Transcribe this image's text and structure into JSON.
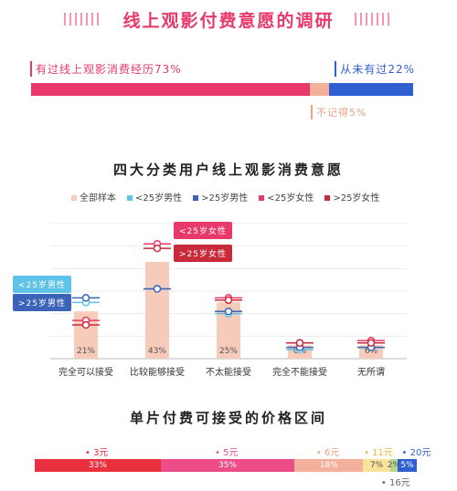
{
  "title": "线上观影付费意愿的调研",
  "overview": {
    "paid": "有过线上观影消费经历73%",
    "never": "从未有过22%",
    "forgot": "不记得5%",
    "values": [
      73,
      5,
      22
    ],
    "colors": [
      "#e8396a",
      "#f3b09b",
      "#2f5fd0"
    ]
  },
  "chart_data": [
    {
      "type": "bar",
      "title": "四大分类用户线上观影消费意愿",
      "categories": [
        "完全可以接受",
        "比较能够接受",
        "不太能接受",
        "完全不能接受",
        "无所谓"
      ],
      "series": [
        {
          "name": "全部样本",
          "values": [
            21,
            43,
            25,
            6,
            6
          ]
        }
      ],
      "bar_labels": [
        "21%",
        "43%",
        "25%",
        "6%",
        "6%"
      ],
      "markers": [
        {
          "name": "<25岁男性",
          "values": [
            25,
            31,
            20,
            4,
            5
          ]
        },
        {
          "name": ">25岁男性",
          "values": [
            27,
            31,
            21,
            5,
            5
          ]
        },
        {
          "name": "<25岁女性",
          "values": [
            17,
            51,
            27,
            7,
            8
          ]
        },
        {
          "name": ">25岁女性",
          "values": [
            15,
            49,
            26,
            7,
            7
          ]
        }
      ],
      "legend": [
        "全部样本",
        "<25岁男性",
        ">25岁男性",
        "<25岁女性",
        ">25岁女性"
      ],
      "callouts": [
        "<25岁女性",
        ">25岁女性",
        "<25岁男性",
        ">25岁男性"
      ],
      "colors": {
        "bar": "#f6cbb9",
        "m1": "#5ec3e6",
        "m2": "#3b63b8",
        "f1": "#e8396a",
        "f2": "#c92a3a"
      },
      "ylim": [
        0,
        60
      ],
      "grid": true
    },
    {
      "type": "bar",
      "title": "单片付费可接受的价格区间",
      "categories": [
        "3元",
        "5元",
        "6元",
        "11元",
        "16元",
        "20元"
      ],
      "values": [
        33,
        35,
        18,
        7,
        2,
        5
      ],
      "bar_labels": [
        "33%",
        "35%",
        "18%",
        "7%",
        "2%",
        "5%"
      ],
      "colors": [
        "#e8303f",
        "#ec4d88",
        "#f3b09b",
        "#f8e39c",
        "#b9d88c",
        "#2f5fd0"
      ]
    }
  ]
}
